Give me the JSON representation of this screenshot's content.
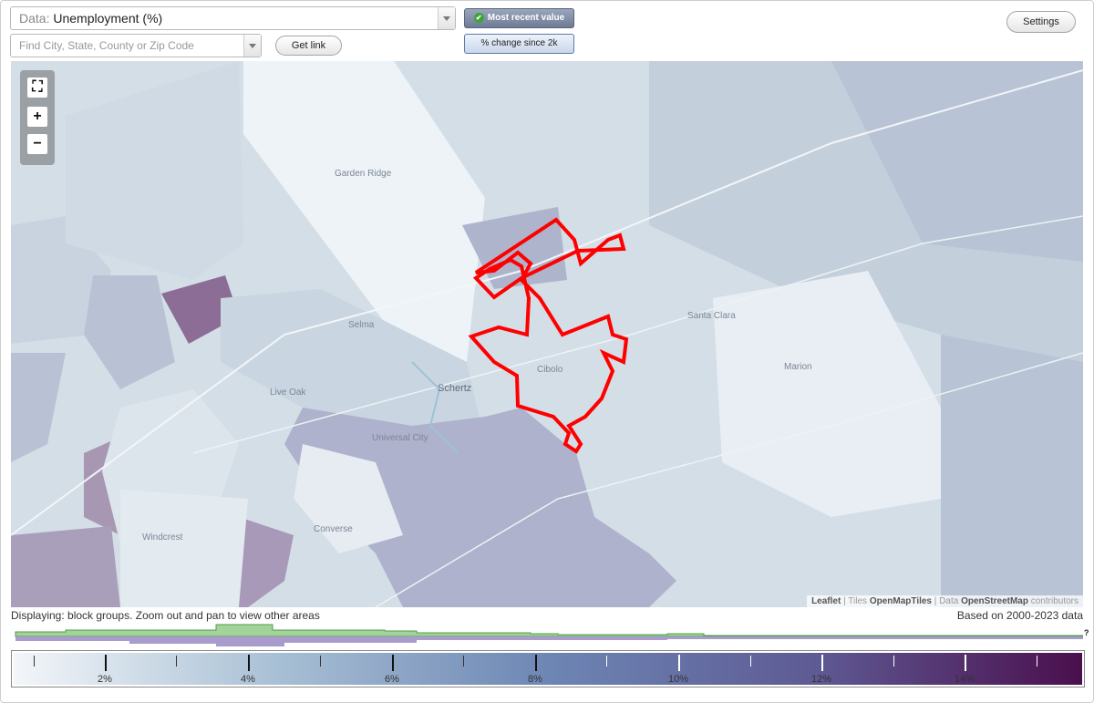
{
  "controls": {
    "data_label": "Data:",
    "data_value": "Unemployment (%)",
    "search_placeholder": "Find City, State, County or Zip Code",
    "get_link": "Get link",
    "mode_recent": "Most recent value",
    "mode_change": "% change since 2k",
    "settings": "Settings"
  },
  "map": {
    "places": [
      "Garden Ridge",
      "Selma",
      "Schertz",
      "Cibolo",
      "Santa Clara",
      "Marion",
      "Live Oak",
      "Universal City",
      "Converse",
      "Windcrest"
    ],
    "attribution": {
      "leaflet": "Leaflet",
      "tiles_label": "Tiles",
      "tiles": "OpenMapTiles",
      "data_label": "Data",
      "data": "OpenStreetMap",
      "contrib": "contributors"
    },
    "zoom_controls": {
      "fit": "fit-bounds-icon",
      "zoom_in": "+",
      "zoom_out": "−"
    },
    "selected_outline_color": "#ff0000"
  },
  "footer": {
    "displaying": "Displaying: block groups. Zoom out and pan to view other areas",
    "based_on": "Based on 2000-2023 data",
    "histogram_unknown": "?"
  },
  "legend": {
    "labels": [
      "2%",
      "4%",
      "6%",
      "8%",
      "10%",
      "12%",
      "14%"
    ],
    "color_low": "#f3f6f9",
    "color_mid": "#6d86b4",
    "color_high": "#4a0f4d"
  }
}
